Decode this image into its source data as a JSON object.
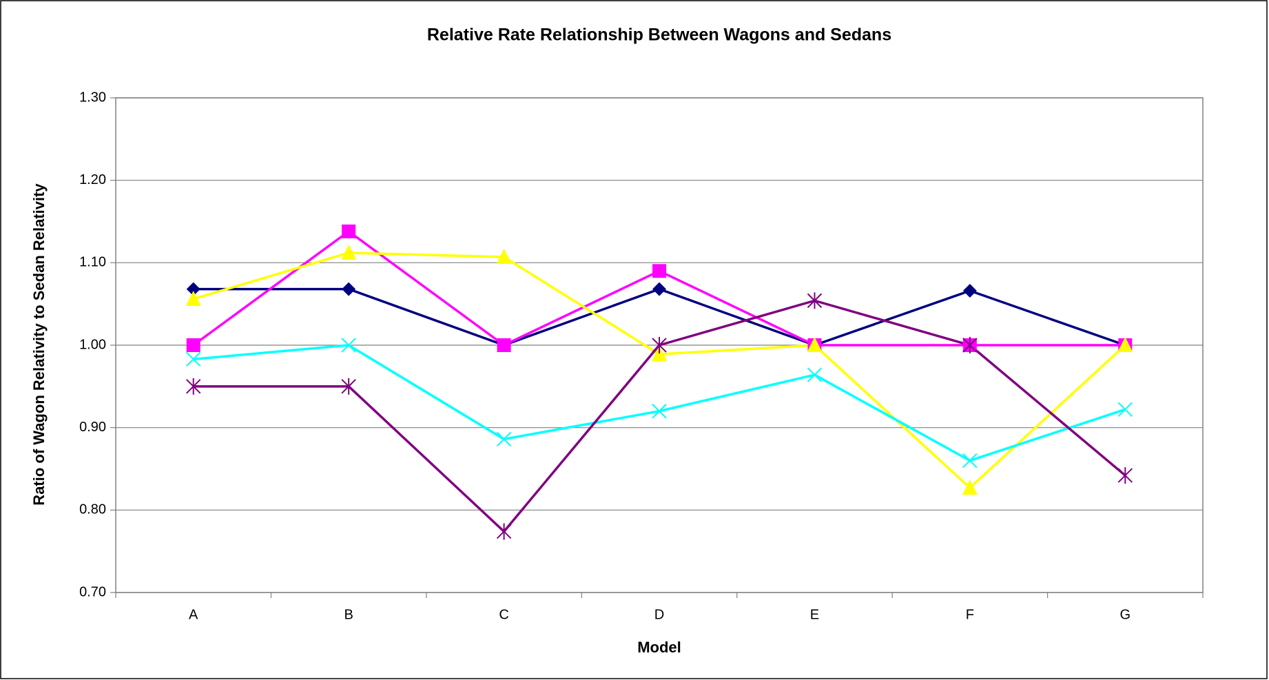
{
  "chart_data": {
    "type": "line",
    "title": "Relative Rate Relationship Between Wagons and Sedans",
    "x_label": "Model",
    "y_label": "Ratio of Wagon Relativity to Sedan Relativity",
    "categories": [
      "A",
      "B",
      "C",
      "D",
      "E",
      "F",
      "G"
    ],
    "series": [
      {
        "color": "#000080",
        "marker": "diamond",
        "values": [
          1.068,
          1.068,
          1.0,
          1.068,
          1.0,
          1.066,
          1.0
        ]
      },
      {
        "color": "#ff00ff",
        "marker": "square",
        "values": [
          1.0,
          1.138,
          1.0,
          1.09,
          1.0,
          1.0,
          1.0
        ]
      },
      {
        "color": "#ffff00",
        "marker": "triangle",
        "values": [
          1.056,
          1.112,
          1.107,
          0.989,
          1.0,
          0.827,
          1.0
        ]
      },
      {
        "color": "#00ffff",
        "marker": "x",
        "values": [
          0.983,
          1.0,
          0.886,
          0.92,
          0.964,
          0.86,
          0.922
        ]
      },
      {
        "color": "#800080",
        "marker": "asterisk",
        "values": [
          0.95,
          0.95,
          0.774,
          1.0,
          1.054,
          1.0,
          0.842
        ]
      }
    ],
    "ylim": [
      0.7,
      1.3
    ],
    "yticks": [
      {
        "value": 0.7,
        "label": "0.70"
      },
      {
        "value": 0.8,
        "label": "0.80"
      },
      {
        "value": 0.9,
        "label": "0.90"
      },
      {
        "value": 1.0,
        "label": "1.00"
      },
      {
        "value": 1.1,
        "label": "1.10"
      },
      {
        "value": 1.2,
        "label": "1.20"
      },
      {
        "value": 1.3,
        "label": "1.30"
      }
    ],
    "grid": true
  }
}
